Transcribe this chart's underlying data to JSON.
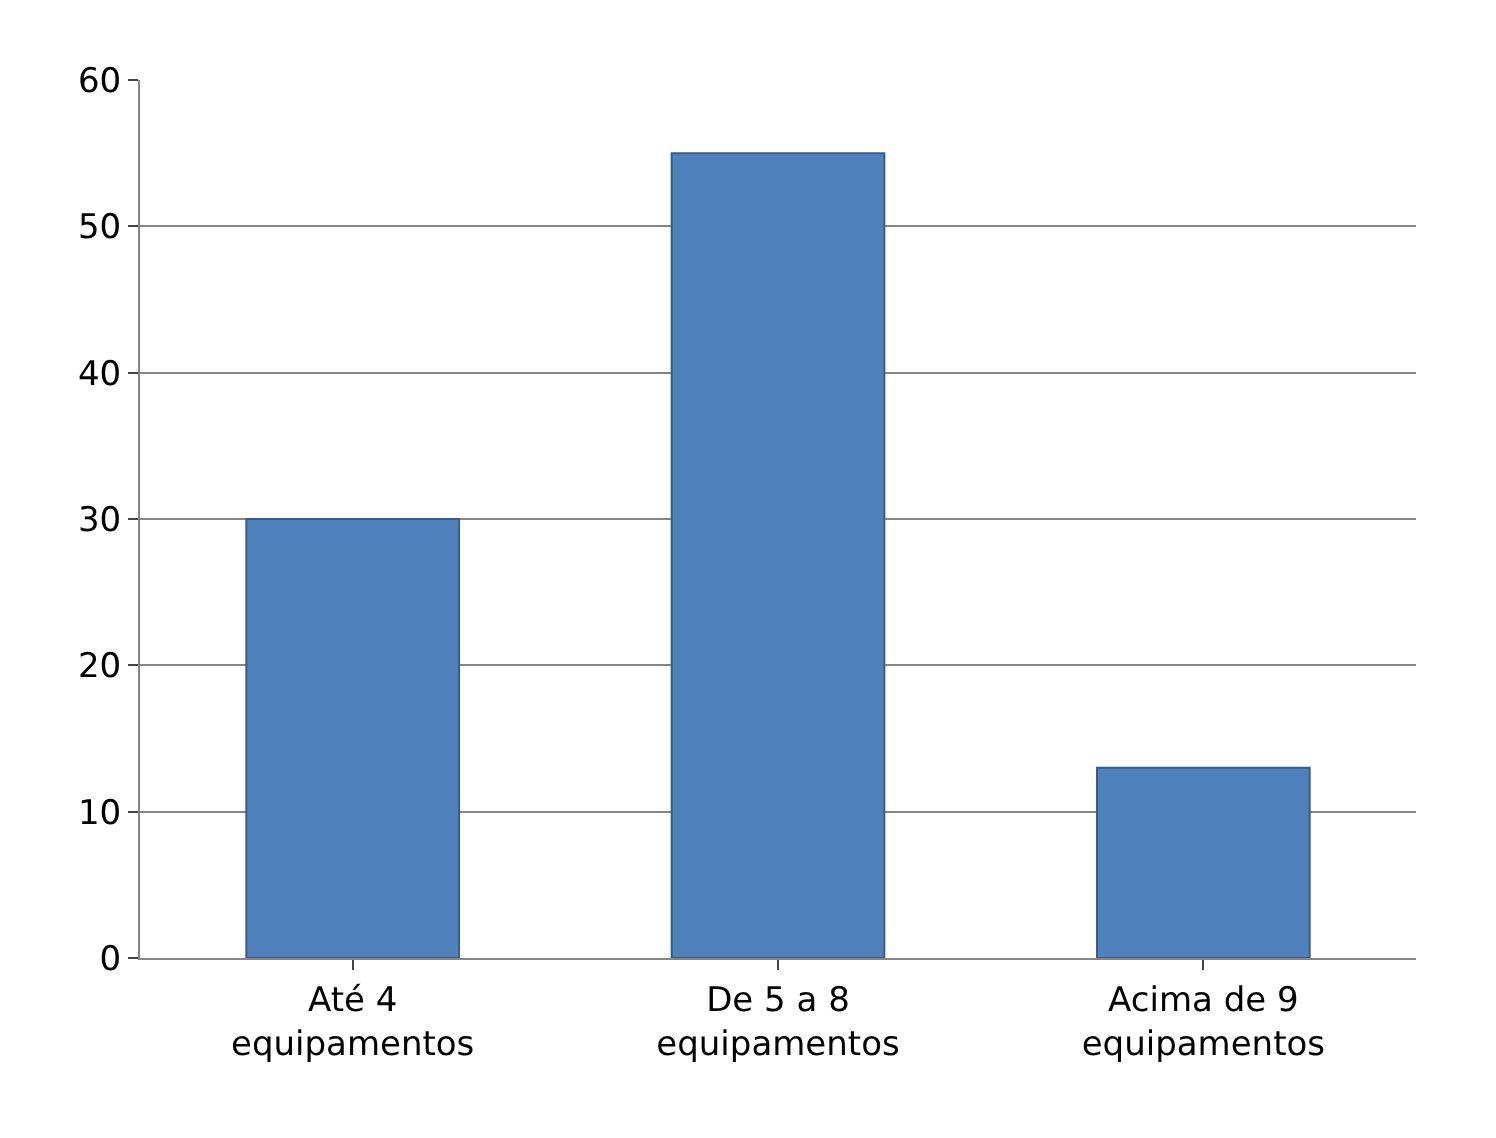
{
  "chart_data": {
    "type": "bar",
    "categories": [
      "Até 4 equipamentos",
      "De 5 a 8 equipamentos",
      "Acima de 9 equipamentos"
    ],
    "values": [
      30,
      55,
      13
    ],
    "color": "#4f81bd",
    "ylim": [
      0,
      60
    ],
    "yticks": [
      0,
      10,
      20,
      30,
      40,
      50,
      60
    ],
    "grid": "y"
  }
}
